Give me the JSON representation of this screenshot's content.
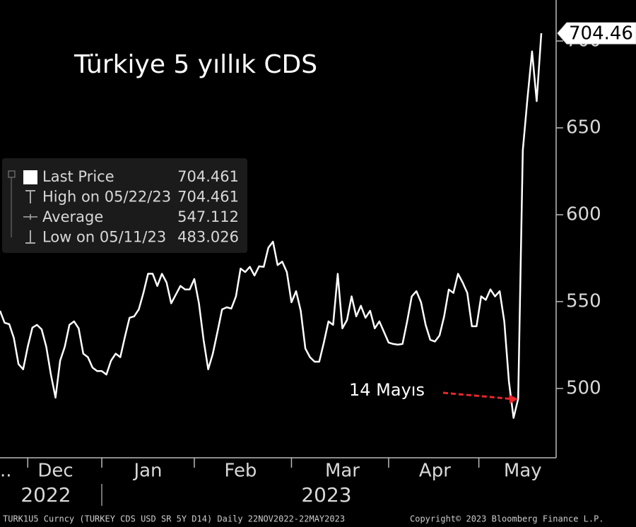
{
  "chart_data": {
    "type": "line",
    "title": "Türkiye 5 yıllık CDS",
    "categories": [
      "..",
      null,
      null,
      null,
      null,
      null,
      null,
      null,
      null,
      null,
      null,
      null,
      "Dec",
      null,
      null,
      null,
      null,
      null,
      null,
      null,
      null,
      null,
      null,
      null,
      null,
      null,
      null,
      null,
      null,
      null,
      null,
      null,
      "Jan",
      null,
      null,
      null,
      null,
      null,
      null,
      null,
      null,
      null,
      null,
      null,
      null,
      null,
      null,
      null,
      null,
      null,
      null,
      null,
      "Feb",
      null,
      null,
      null,
      null,
      null,
      null,
      null,
      null,
      null,
      null,
      null,
      null,
      null,
      null,
      null,
      null,
      null,
      null,
      null,
      null,
      null,
      "Mar",
      null,
      null,
      null,
      null,
      null,
      null,
      null,
      null,
      null,
      null,
      null,
      null,
      null,
      null,
      null,
      null,
      null,
      null,
      null,
      "Apr",
      null,
      null,
      null,
      null,
      null,
      null,
      null,
      null,
      null,
      null,
      null,
      null,
      null,
      null,
      null,
      null,
      null,
      null,
      "May",
      null,
      null,
      null,
      null
    ],
    "values": [
      544.7,
      537.8,
      537,
      529,
      514,
      511,
      524,
      535,
      536.6,
      534,
      524,
      508,
      494.7,
      516,
      524,
      536.6,
      538.6,
      534.6,
      520,
      518,
      512,
      510,
      510,
      508,
      516,
      520,
      518,
      529.7,
      540.7,
      541.5,
      545.5,
      555,
      566,
      566,
      559,
      566,
      561,
      549,
      554,
      559,
      557,
      557,
      563,
      549,
      528,
      511,
      520,
      532.5,
      545.5,
      546.7,
      546,
      553,
      569,
      567,
      570,
      565,
      570.3,
      570,
      581,
      584.5,
      571,
      573,
      567,
      549.6,
      556,
      544.7,
      523,
      518,
      515.4,
      515.4,
      526.4,
      538.6,
      536.6,
      566,
      534.6,
      539.4,
      553,
      541.5,
      547.6,
      540.7,
      544.7,
      534.6,
      538.6,
      532.5,
      526.4,
      525.6,
      525.2,
      525.6,
      538.6,
      553,
      556,
      549.6,
      536.6,
      528,
      527,
      530.5,
      541.5,
      556.9,
      555,
      566,
      561,
      555,
      535.8,
      535.8,
      553,
      551,
      557,
      553,
      556,
      538.6,
      504,
      483.026,
      494,
      637,
      666.7,
      694,
      665.4,
      704.461
    ],
    "color": "#ffffff",
    "ylim": [
      460.5,
      723.6
    ],
    "yticks": [
      500,
      550,
      600,
      650,
      700
    ],
    "year_labels": [
      "2022",
      "2023"
    ],
    "last_price_label": 704.46,
    "annotation": {
      "text": "14 Mayıs",
      "color": "#e8262a",
      "index": 112
    },
    "legend": [
      {
        "label": "Last Price",
        "value": 704.461
      },
      {
        "label": "High on 05/22/23",
        "value": 704.461
      },
      {
        "label": "Average",
        "value": 547.112
      },
      {
        "label": "Low on 05/11/23",
        "value": 483.026
      }
    ],
    "source": "TURK1U5 Curncy (TURKEY CDS USD SR 5Y D14)  Daily 22NOV2022-22MAY2023",
    "copyright": "Copyright© 2023 Bloomberg Finance L.P."
  }
}
